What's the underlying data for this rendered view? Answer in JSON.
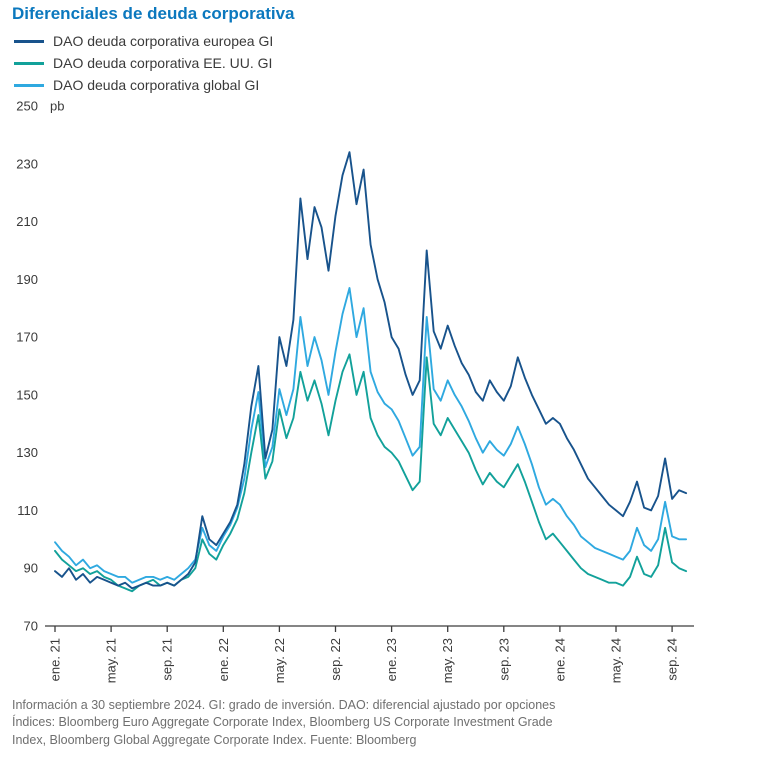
{
  "title": "Diferenciales de deuda corporativa",
  "colors": {
    "title": "#0b78be",
    "axis_text": "#3a3a3a",
    "footnote_text": "#6f6f6f",
    "series_europe": "#18538c",
    "series_us": "#12a19a",
    "series_global": "#2fa9e0"
  },
  "chart_data": {
    "type": "line",
    "title": "Diferenciales de deuda corporativa",
    "unit_label": "pb",
    "ylabel": "pb",
    "ylim": [
      70,
      250
    ],
    "y_ticks": [
      70,
      90,
      110,
      130,
      150,
      170,
      190,
      210,
      230,
      250
    ],
    "grid": false,
    "legend_position": "top-left",
    "x_axis_note": "monthly timeline Jan 2021 - Sep 2024, values sampled every half month",
    "month_step": 0.5,
    "x_tick_months": [
      0,
      4,
      8,
      12,
      16,
      20,
      24,
      28,
      32,
      36,
      40,
      44
    ],
    "x_tick_labels": [
      "ene. 21",
      "may. 21",
      "sep. 21",
      "ene. 22",
      "may. 22",
      "sep. 22",
      "ene. 23",
      "may. 23",
      "sep. 23",
      "ene. 24",
      "may. 24",
      "sep. 24"
    ],
    "series": [
      {
        "name": "DAO deuda corporativa europea GI",
        "color": "#18538c",
        "values": [
          89,
          87,
          90,
          86,
          88,
          85,
          87,
          86,
          85,
          84,
          85,
          83,
          84,
          85,
          84,
          84,
          85,
          84,
          86,
          88,
          92,
          108,
          100,
          98,
          102,
          106,
          112,
          126,
          146,
          160,
          128,
          138,
          170,
          160,
          176,
          218,
          197,
          215,
          208,
          193,
          212,
          226,
          234,
          216,
          228,
          202,
          190,
          182,
          170,
          166,
          157,
          150,
          155,
          200,
          172,
          166,
          174,
          167,
          161,
          157,
          151,
          148,
          155,
          151,
          148,
          153,
          163,
          156,
          150,
          145,
          140,
          142,
          140,
          135,
          131,
          126,
          121,
          118,
          115,
          112,
          110,
          108,
          113,
          120,
          111,
          110,
          115,
          128,
          114,
          117,
          116
        ]
      },
      {
        "name": "DAO deuda corporativa EE. UU. GI",
        "color": "#12a19a",
        "values": [
          96,
          93,
          91,
          89,
          90,
          88,
          89,
          87,
          86,
          84,
          83,
          82,
          84,
          85,
          86,
          84,
          85,
          84,
          86,
          87,
          90,
          100,
          95,
          93,
          98,
          102,
          107,
          116,
          130,
          143,
          121,
          127,
          145,
          135,
          142,
          158,
          148,
          155,
          147,
          136,
          148,
          158,
          164,
          150,
          158,
          142,
          136,
          132,
          130,
          127,
          122,
          117,
          120,
          163,
          140,
          136,
          142,
          138,
          134,
          130,
          124,
          119,
          123,
          120,
          118,
          122,
          126,
          120,
          113,
          106,
          100,
          102,
          99,
          96,
          93,
          90,
          88,
          87,
          86,
          85,
          85,
          84,
          87,
          94,
          88,
          87,
          91,
          104,
          92,
          90,
          89
        ]
      },
      {
        "name": "DAO deuda corporativa global GI",
        "color": "#2fa9e0",
        "values": [
          99,
          96,
          94,
          91,
          93,
          90,
          91,
          89,
          88,
          87,
          87,
          85,
          86,
          87,
          87,
          86,
          87,
          86,
          88,
          90,
          93,
          104,
          98,
          96,
          101,
          105,
          111,
          121,
          138,
          151,
          125,
          132,
          152,
          143,
          152,
          177,
          160,
          170,
          162,
          150,
          165,
          178,
          187,
          170,
          180,
          158,
          151,
          147,
          145,
          141,
          135,
          129,
          132,
          177,
          152,
          148,
          155,
          150,
          146,
          141,
          135,
          130,
          134,
          131,
          129,
          133,
          139,
          133,
          126,
          118,
          112,
          114,
          112,
          108,
          105,
          101,
          99,
          97,
          96,
          95,
          94,
          93,
          96,
          104,
          98,
          96,
          100,
          113,
          101,
          100,
          100
        ]
      }
    ]
  },
  "footnote_lines": [
    "Información a 30 septiembre 2024. GI: grado de inversión. DAO: diferencial ajustado por opciones",
    "Índices: Bloomberg Euro Aggregate Corporate Index, Bloomberg US Corporate Investment Grade",
    "Index, Bloomberg Global Aggregate Corporate Index. Fuente: Bloomberg"
  ]
}
